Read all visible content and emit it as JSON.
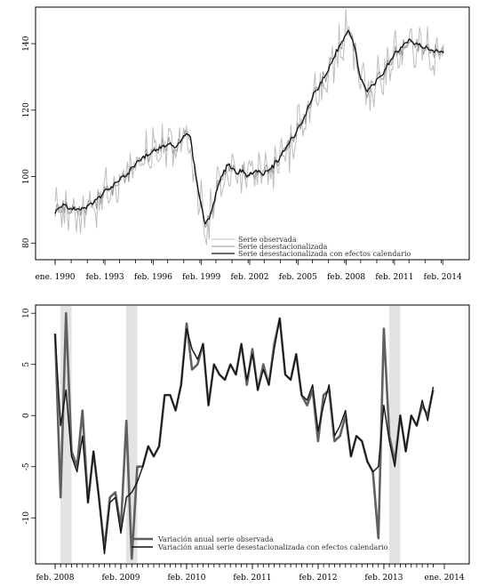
{
  "chart_data": [
    {
      "type": "line",
      "title": "",
      "xlabel": "",
      "ylabel": "",
      "x_range": [
        1990.0,
        2014.2
      ],
      "ylim": [
        75,
        151
      ],
      "y_ticks": [
        80,
        100,
        120,
        140
      ],
      "x_tick_labels": [
        "ene. 1990",
        "feb. 1993",
        "feb. 1996",
        "feb. 1999",
        "feb. 2002",
        "feb. 2005",
        "feb. 2008",
        "feb. 2011",
        "feb. 2014"
      ],
      "x_tick_positions": [
        1990.0,
        1993.1,
        1996.1,
        1999.1,
        2002.1,
        2005.1,
        2008.1,
        2011.1,
        2014.1
      ],
      "legend_position": "bottom-right",
      "series": [
        {
          "name": "Serie observada",
          "color": "#bdbdbd",
          "width": 1.0,
          "amplitude": 6.5,
          "stride": 0.0833
        },
        {
          "name": "Serie desestacionalizada",
          "color": "#9a9a9a",
          "width": 1.0,
          "amplitude": 2.0,
          "stride": 0.0833
        },
        {
          "name": "Serie desestacionalizada con efectos calendario",
          "color": "#111111",
          "width": 1.3,
          "amplitude": 0.6,
          "stride": 0.0833
        }
      ],
      "trend": [
        [
          1990.0,
          89
        ],
        [
          1990.5,
          92
        ],
        [
          1991.0,
          90
        ],
        [
          1992.0,
          91
        ],
        [
          1992.5,
          93
        ],
        [
          1993.0,
          95
        ],
        [
          1993.5,
          97
        ],
        [
          1994.0,
          99
        ],
        [
          1994.5,
          101
        ],
        [
          1995.0,
          104
        ],
        [
          1995.5,
          106
        ],
        [
          1996.0,
          107
        ],
        [
          1996.5,
          109
        ],
        [
          1997.0,
          110
        ],
        [
          1997.5,
          109
        ],
        [
          1998.0,
          112
        ],
        [
          1998.4,
          113
        ],
        [
          1998.6,
          105
        ],
        [
          1998.9,
          96
        ],
        [
          1999.3,
          86
        ],
        [
          1999.7,
          89
        ],
        [
          2000.0,
          95
        ],
        [
          2000.4,
          101
        ],
        [
          2000.8,
          104
        ],
        [
          2001.2,
          101
        ],
        [
          2001.6,
          102
        ],
        [
          2002.0,
          100
        ],
        [
          2002.5,
          102
        ],
        [
          2003.0,
          101
        ],
        [
          2003.5,
          103
        ],
        [
          2004.0,
          106
        ],
        [
          2004.5,
          110
        ],
        [
          2005.0,
          113
        ],
        [
          2005.5,
          118
        ],
        [
          2006.0,
          124
        ],
        [
          2006.5,
          128
        ],
        [
          2007.0,
          132
        ],
        [
          2007.5,
          138
        ],
        [
          2008.0,
          142
        ],
        [
          2008.3,
          144
        ],
        [
          2008.6,
          140
        ],
        [
          2009.0,
          129
        ],
        [
          2009.4,
          126
        ],
        [
          2009.8,
          128
        ],
        [
          2010.2,
          130
        ],
        [
          2010.6,
          133
        ],
        [
          2011.0,
          136
        ],
        [
          2011.5,
          139
        ],
        [
          2012.0,
          141
        ],
        [
          2012.5,
          140
        ],
        [
          2013.0,
          139
        ],
        [
          2013.5,
          138
        ],
        [
          2014.0,
          138
        ],
        [
          2014.2,
          137
        ]
      ]
    },
    {
      "type": "line",
      "title": "",
      "xlabel": "",
      "ylabel": "",
      "x_range": [
        2007.9,
        2014.25
      ],
      "ylim": [
        -14.5,
        10.8
      ],
      "y_ticks": [
        -10,
        -5,
        0,
        5,
        10
      ],
      "x_tick_labels": [
        "feb. 2008",
        "feb. 2009",
        "feb. 2010",
        "feb. 2011",
        "feb. 2012",
        "feb. 2013",
        "ene. 2014"
      ],
      "x_tick_positions": [
        2008.0,
        2009.0,
        2010.0,
        2011.0,
        2012.0,
        2013.0,
        2013.92
      ],
      "shaded_intervals": [
        [
          2008.08,
          2008.25
        ],
        [
          2009.08,
          2009.25
        ],
        [
          2013.08,
          2013.25
        ]
      ],
      "legend_position": "bottom-left",
      "series": [
        {
          "name": "Variación anual serie observada",
          "color": "#606060",
          "width": 2.6,
          "values": [
            8,
            -8,
            10,
            -3.5,
            -5,
            0.5,
            -8.5,
            -3.5,
            -8,
            -13,
            -8,
            -7.5,
            -11,
            -0.5,
            -14,
            -5,
            -5,
            -3,
            -4,
            -3,
            2,
            2,
            0.5,
            3,
            9,
            4.5,
            5,
            7,
            1,
            5,
            4,
            3.5,
            5,
            4,
            7,
            3,
            6.5,
            2.5,
            5,
            3,
            7,
            9.5,
            4,
            3.5,
            6,
            2,
            1,
            2.5,
            -2.5,
            2,
            2.5,
            -2.5,
            -2,
            0,
            -4,
            -2,
            -2.5,
            -4.5,
            -5.5,
            -12,
            8.5,
            -2,
            -4.5,
            0,
            -3.5,
            0,
            -1,
            1,
            0,
            2.5
          ]
        },
        {
          "name": "Variación anual serie desestacionalizada con efectos calendario",
          "color": "#111111",
          "width": 1.4,
          "values": [
            8,
            -1,
            2.5,
            -4,
            -5.5,
            -2,
            -8.5,
            -3.5,
            -8,
            -13.5,
            -8.5,
            -8,
            -11.5,
            -8,
            -7.5,
            -6.5,
            -5,
            -3,
            -4,
            -3,
            2,
            2,
            0.5,
            3,
            8.5,
            6.5,
            5.5,
            7,
            1,
            5,
            4,
            3.5,
            5,
            4,
            7,
            3.5,
            6,
            2.5,
            4.5,
            3,
            6.5,
            9.5,
            4,
            3.5,
            6,
            2,
            1.5,
            3,
            -1.5,
            1,
            3,
            -2,
            -1,
            0.5,
            -4,
            -2,
            -2.5,
            -4.5,
            -5.5,
            -5,
            1,
            -2.5,
            -5,
            0,
            -3.5,
            0,
            -1,
            1.5,
            -0.5,
            2.8
          ]
        }
      ]
    }
  ]
}
